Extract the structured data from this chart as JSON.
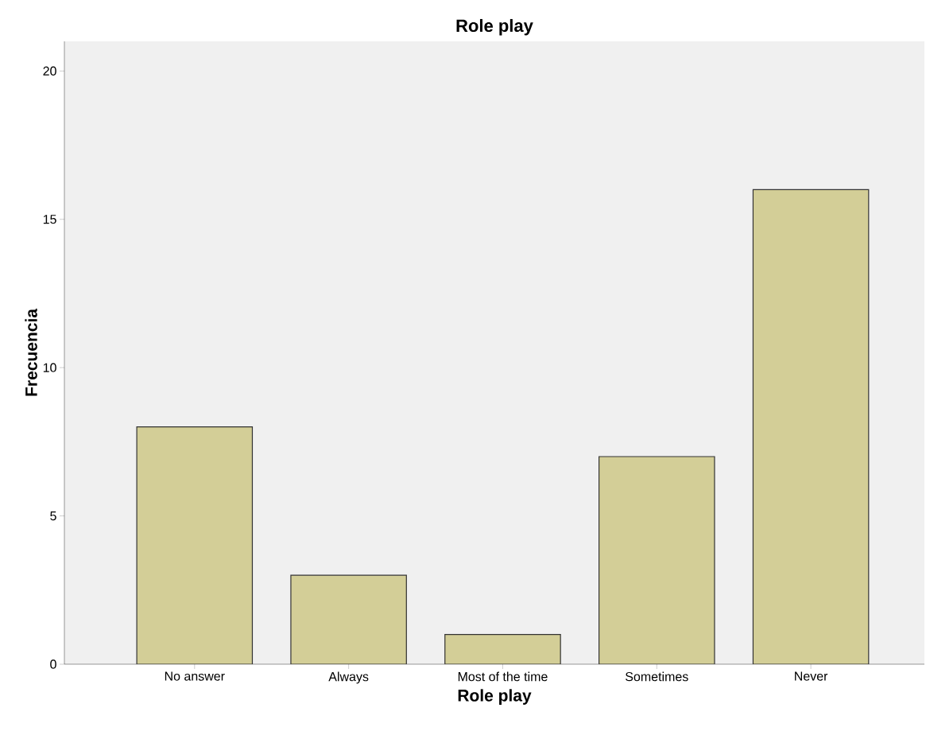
{
  "chart_data": {
    "type": "bar",
    "title": "Role play",
    "xlabel": "Role play",
    "ylabel": "Frecuencia",
    "categories": [
      "No answer",
      "Always",
      "Most of the time",
      "Sometimes",
      "Never"
    ],
    "values": [
      8,
      3,
      1,
      7,
      16
    ],
    "color": "#d3ce97",
    "ylim": [
      0,
      21
    ],
    "yticks": [
      0,
      5,
      10,
      15,
      20
    ],
    "grid": false
  }
}
